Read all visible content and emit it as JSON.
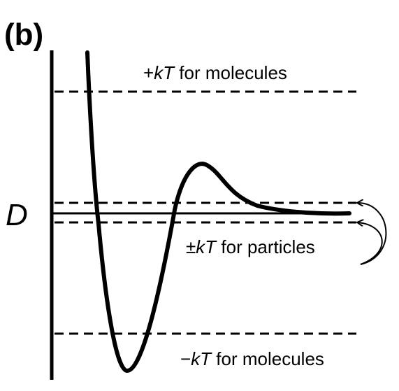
{
  "figure": {
    "panel_label": "(b)",
    "axis_symbol": "D",
    "levels": {
      "plus_kT_molecules": {
        "prefix": "+",
        "kT": "kT",
        "suffix": " for molecules"
      },
      "pm_kT_particles": {
        "prefix": "±",
        "kT": "kT",
        "suffix": " for particles"
      },
      "minus_kT_molecules": {
        "prefix": "−",
        "kT": "kT",
        "suffix": " for molecules"
      }
    }
  }
}
